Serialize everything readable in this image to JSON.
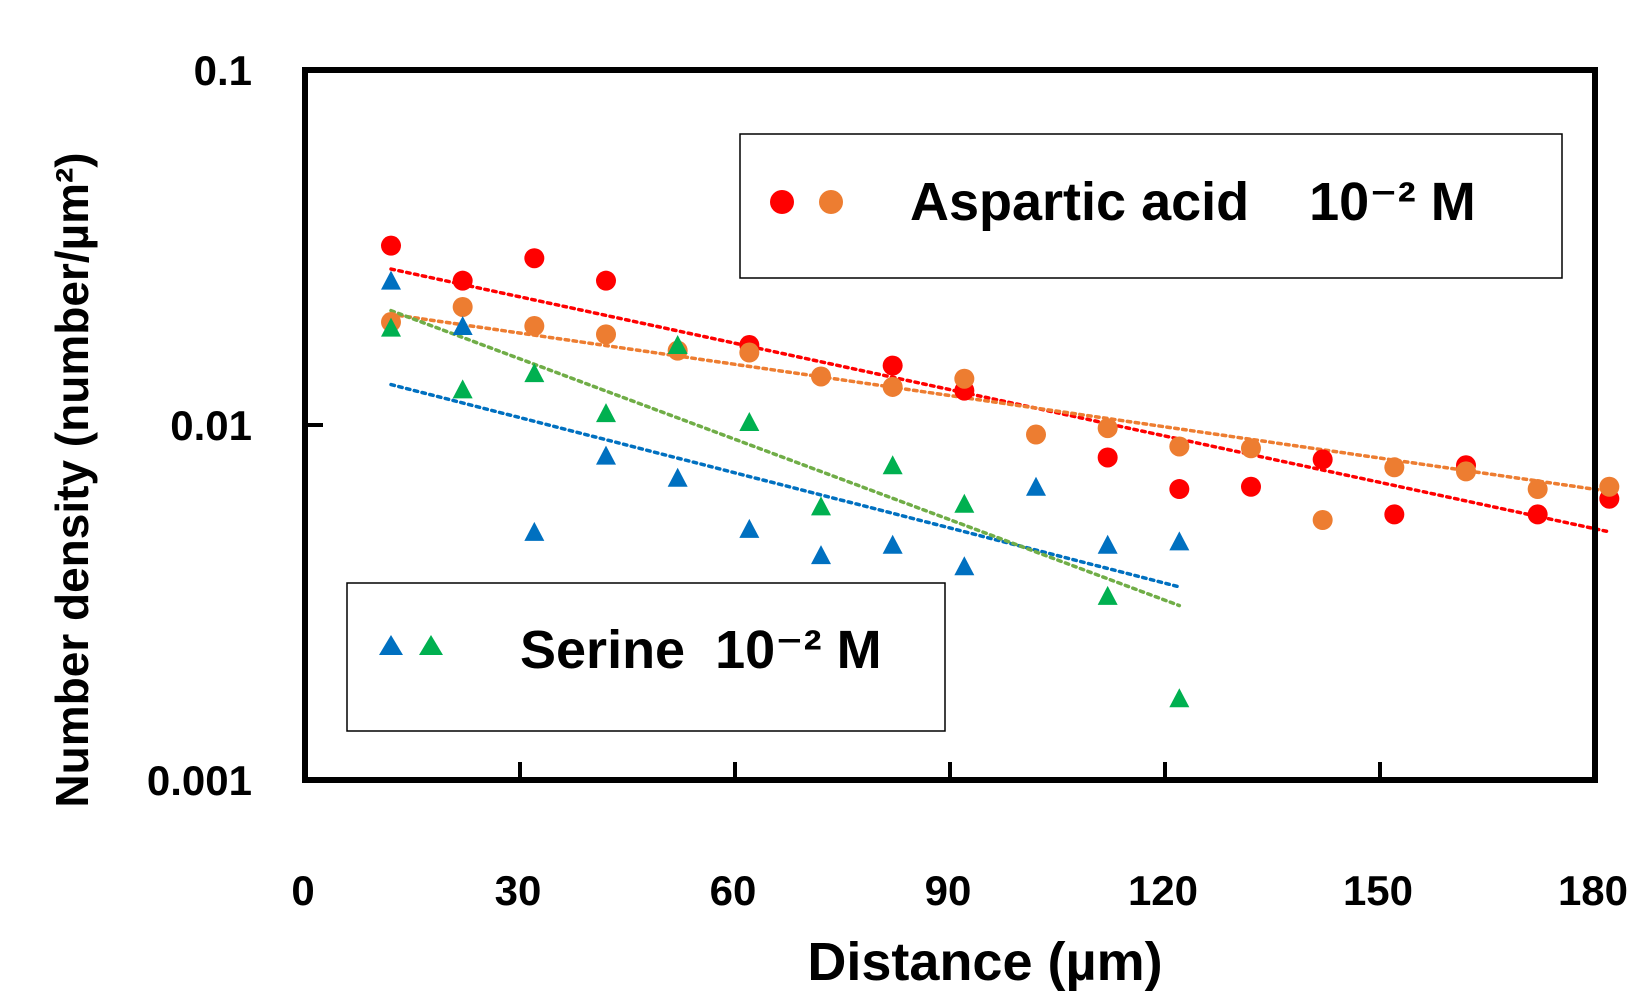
{
  "chart_data": {
    "type": "scatter",
    "xlabel": "Distance (µm)",
    "ylabel": "Number density (number/µm²)",
    "xlim": [
      0,
      180
    ],
    "ylim": [
      0.001,
      0.1
    ],
    "y_scale": "log",
    "x_ticks": [
      "0",
      "30",
      "60",
      "90",
      "120",
      "150",
      "180"
    ],
    "y_ticks": [
      "0.001",
      "0.01",
      "0.1"
    ],
    "grid": false,
    "legends": [
      {
        "label": "Aspartic acid    10⁻² M",
        "placement": "top-right",
        "series": [
          0,
          1
        ]
      },
      {
        "label": "Serine  10⁻² M",
        "placement": "bottom-left",
        "series": [
          2,
          3
        ]
      }
    ],
    "series": [
      {
        "marker": "circle",
        "color": "#ff0000",
        "x": [
          12,
          22,
          32,
          42,
          62,
          82,
          92,
          112,
          122,
          132,
          142,
          152,
          162,
          172,
          182
        ],
        "y": [
          0.032,
          0.0255,
          0.0295,
          0.0255,
          0.0168,
          0.0147,
          0.0125,
          0.0081,
          0.0066,
          0.0067,
          0.008,
          0.0056,
          0.0077,
          0.0056,
          0.0062
        ],
        "trend": {
          "x": [
            12,
            182
          ],
          "y": [
            0.0275,
            0.005
          ],
          "color": "#ff0000"
        }
      },
      {
        "marker": "circle",
        "color": "#ed7d31",
        "x": [
          12,
          22,
          32,
          42,
          52,
          62,
          72,
          82,
          92,
          102,
          112,
          122,
          132,
          142,
          152,
          162,
          172,
          182
        ],
        "y": [
          0.0195,
          0.0215,
          0.019,
          0.018,
          0.0162,
          0.016,
          0.0137,
          0.0128,
          0.0135,
          0.0094,
          0.0098,
          0.0087,
          0.0086,
          0.0054,
          0.0076,
          0.0074,
          0.0066,
          0.0067
        ],
        "trend": {
          "x": [
            12,
            182
          ],
          "y": [
            0.0205,
            0.0065
          ],
          "color": "#ed7d31"
        }
      },
      {
        "marker": "triangle",
        "color": "#0070c0",
        "x": [
          12,
          22,
          32,
          42,
          52,
          62,
          72,
          82,
          92,
          102,
          112,
          122
        ],
        "y": [
          0.0255,
          0.019,
          0.005,
          0.0082,
          0.0071,
          0.0051,
          0.0043,
          0.0046,
          0.004,
          0.0067,
          0.0046,
          0.0047
        ],
        "trend": {
          "x": [
            12,
            122
          ],
          "y": [
            0.013,
            0.0035
          ],
          "color": "#0070c0"
        }
      },
      {
        "marker": "triangle",
        "color": "#00b050",
        "x": [
          12,
          22,
          32,
          42,
          52,
          62,
          72,
          82,
          92,
          112,
          122
        ],
        "y": [
          0.0188,
          0.0126,
          0.014,
          0.0108,
          0.0168,
          0.0102,
          0.0059,
          0.0077,
          0.006,
          0.0033,
          0.0017
        ],
        "trend": {
          "x": [
            12,
            122
          ],
          "y": [
            0.021,
            0.0031
          ],
          "color": "#70ad47"
        }
      }
    ]
  }
}
